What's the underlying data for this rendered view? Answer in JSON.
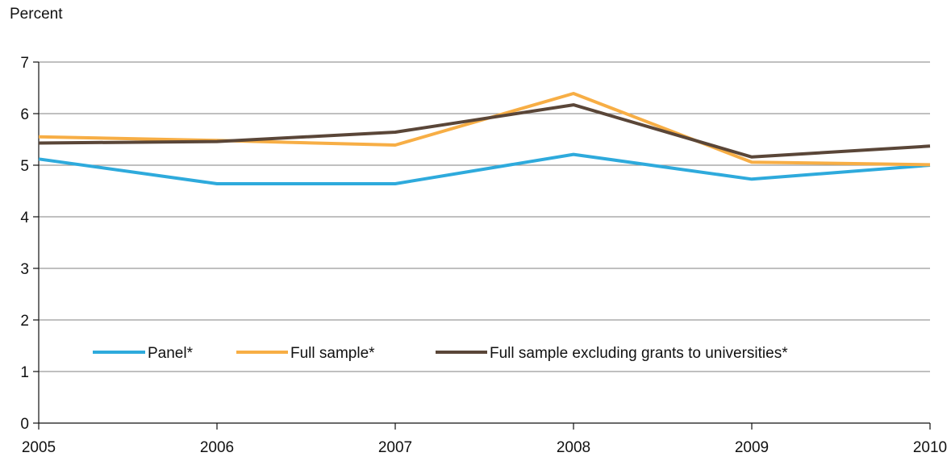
{
  "chart_data": {
    "type": "line",
    "ylabel": "Percent",
    "xlabel": "",
    "title": "",
    "x": [
      "2005",
      "2006",
      "2007",
      "2008",
      "2009",
      "2010"
    ],
    "y_ticks": [
      "0",
      "1",
      "2",
      "3",
      "4",
      "5",
      "6",
      "7"
    ],
    "ylim": [
      0,
      7
    ],
    "grid": true,
    "legend_position": "lower-center",
    "series": [
      {
        "name": "Panel*",
        "color": "#2eaadc",
        "values": [
          5.12,
          4.64,
          4.64,
          5.21,
          4.73,
          5.0
        ]
      },
      {
        "name": "Full sample*",
        "color": "#f7ae45",
        "values": [
          5.55,
          5.48,
          5.39,
          6.39,
          5.06,
          5.01
        ]
      },
      {
        "name": "Full sample excluding grants to universities*",
        "color": "#5a4638",
        "values": [
          5.43,
          5.46,
          5.64,
          6.17,
          5.16,
          5.37
        ]
      }
    ]
  }
}
